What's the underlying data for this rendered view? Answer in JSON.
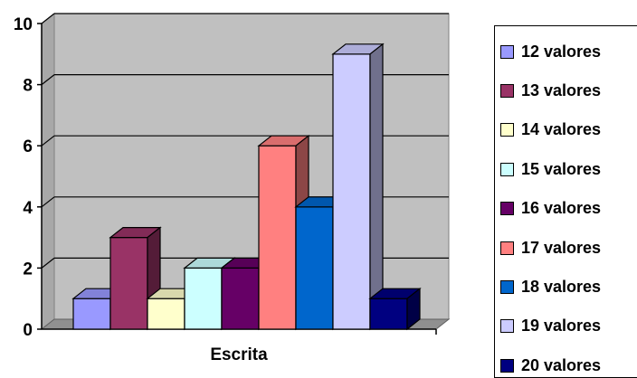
{
  "chart_data": {
    "type": "bar",
    "categories": [
      "Escrita"
    ],
    "series": [
      {
        "name": "12 valores",
        "values": [
          1
        ],
        "color": "#9999FF"
      },
      {
        "name": "13 valores",
        "values": [
          3
        ],
        "color": "#993366"
      },
      {
        "name": "14 valores",
        "values": [
          1
        ],
        "color": "#FFFFCC"
      },
      {
        "name": "15 valores",
        "values": [
          2
        ],
        "color": "#CCFFFF"
      },
      {
        "name": "16 valores",
        "values": [
          2
        ],
        "color": "#660066"
      },
      {
        "name": "17 valores",
        "values": [
          6
        ],
        "color": "#FF8080"
      },
      {
        "name": "18 valores",
        "values": [
          4
        ],
        "color": "#0066CC"
      },
      {
        "name": "19 valores",
        "values": [
          9
        ],
        "color": "#CCCCFF"
      },
      {
        "name": "20 valores",
        "values": [
          1
        ],
        "color": "#000080"
      }
    ],
    "y_ticks": [
      "0",
      "2",
      "4",
      "6",
      "8",
      "10"
    ],
    "ylim": [
      0,
      10
    ],
    "grid": true,
    "legend_position": "right",
    "wall_color": "#C0C0C0"
  }
}
